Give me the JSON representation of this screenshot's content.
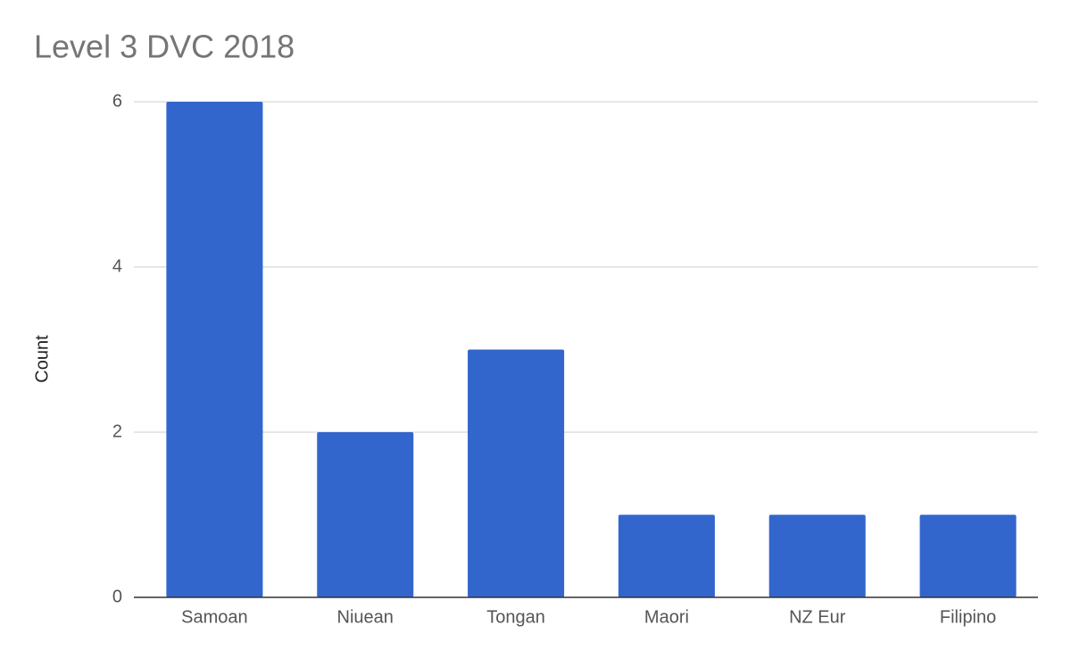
{
  "chart_data": {
    "type": "bar",
    "title": "Level 3 DVC 2018",
    "y_label": "Count",
    "categories": [
      "Samoan",
      "Niuean",
      "Tongan",
      "Maori",
      "NZ Eur",
      "Filipino"
    ],
    "values": [
      6,
      2,
      3,
      1,
      1,
      1
    ],
    "color": "#3366cc",
    "ylim": [
      0,
      6
    ],
    "yticks": [
      0,
      2,
      4,
      6
    ],
    "grid": true
  }
}
